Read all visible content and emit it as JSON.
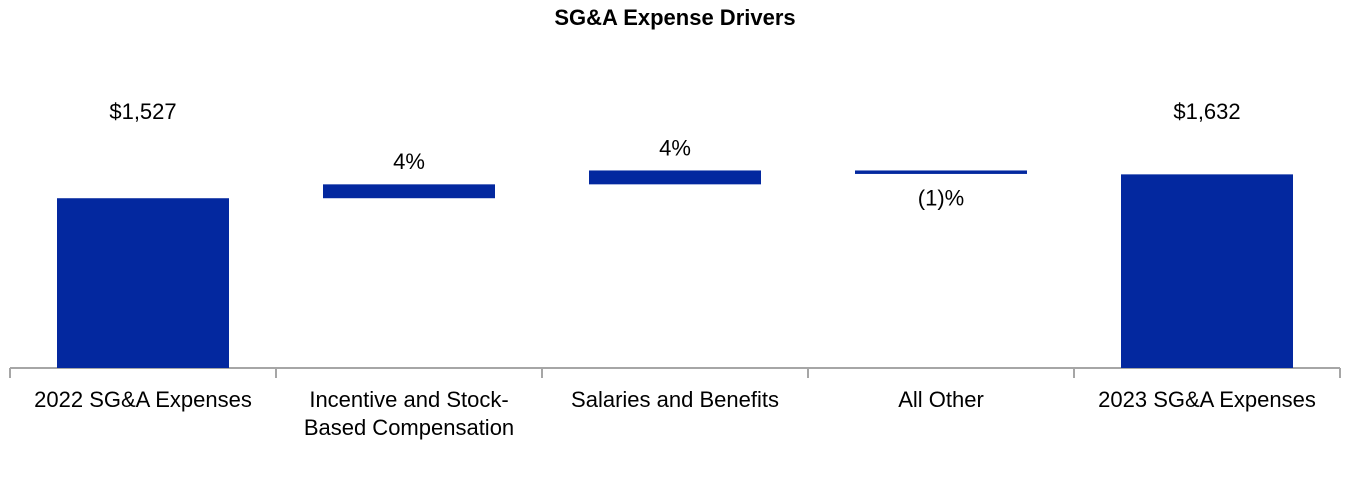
{
  "chart_data": {
    "type": "waterfall",
    "title": "SG&A Expense Drivers",
    "categories": [
      "2022 SG&A Expenses",
      "Incentive and Stock-Based Compensation",
      "Salaries and Benefits",
      "All Other",
      "2023 SG&A Expenses"
    ],
    "values": [
      1527,
      4,
      4,
      -1,
      1632
    ],
    "value_labels": [
      "$1,527",
      "4%",
      "4%",
      "(1)%",
      "$1,632"
    ],
    "color": "#03289f",
    "ylim": [
      780,
      1660
    ]
  }
}
